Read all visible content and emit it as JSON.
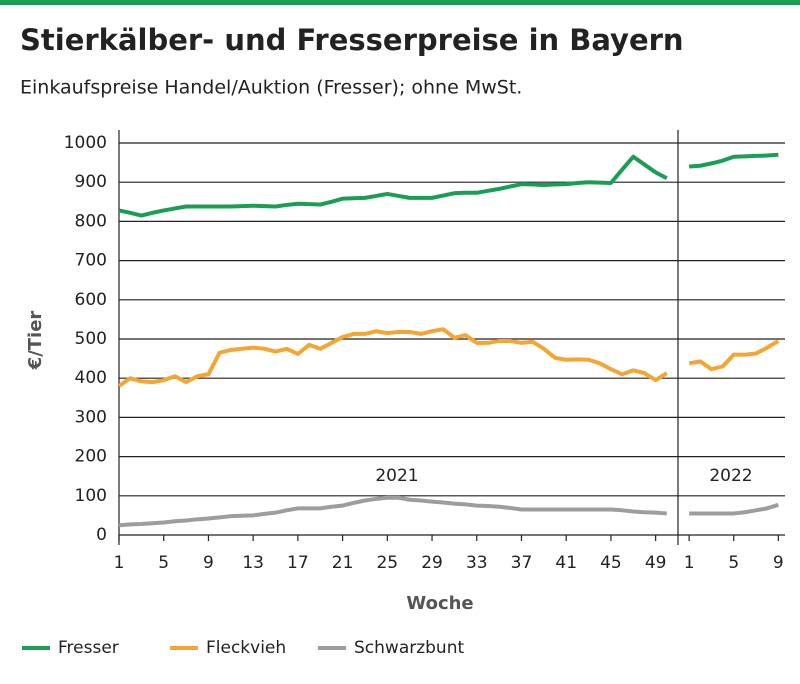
{
  "chart_data": [
    {
      "type": "line",
      "title": "Stierkälber- und Fresserpreise in Bayern",
      "subtitle": "Einkaufspreise Handel/Auktion (Fresser); ohne MwSt.",
      "ylabel": "€/Tier",
      "xlabel": "Woche",
      "annotation": "2021",
      "x": [
        1,
        2,
        3,
        4,
        5,
        6,
        7,
        8,
        9,
        10,
        11,
        12,
        13,
        14,
        15,
        16,
        17,
        18,
        19,
        20,
        21,
        22,
        23,
        24,
        25,
        26,
        27,
        28,
        29,
        30,
        31,
        32,
        33,
        34,
        35,
        36,
        37,
        38,
        39,
        40,
        41,
        42,
        43,
        44,
        45,
        46,
        47,
        48,
        49,
        50
      ],
      "xlim": [
        1,
        51
      ],
      "xticks": [
        1,
        5,
        9,
        13,
        17,
        21,
        25,
        29,
        33,
        37,
        41,
        45,
        49
      ],
      "ylim": [
        0,
        1000
      ],
      "yticks": [
        0,
        100,
        200,
        300,
        400,
        500,
        600,
        700,
        800,
        900,
        1000
      ],
      "grid": true,
      "legend": "bottom",
      "series": [
        {
          "name": "Fresser",
          "color": "#1a9e56",
          "values": [
            828,
            822,
            815,
            822,
            828,
            833,
            838,
            838,
            838,
            838,
            838,
            839,
            840,
            839,
            838,
            842,
            845,
            844,
            843,
            850,
            858,
            859,
            860,
            865,
            870,
            865,
            860,
            860,
            860,
            866,
            872,
            873,
            873,
            878,
            883,
            889,
            895,
            894,
            893,
            894,
            895,
            898,
            900,
            899,
            898,
            932,
            965,
            945,
            925,
            910
          ]
        },
        {
          "name": "Fleckvieh",
          "color": "#f4a533",
          "values": [
            380,
            400,
            392,
            390,
            395,
            405,
            390,
            405,
            410,
            465,
            472,
            475,
            478,
            475,
            468,
            475,
            462,
            485,
            475,
            490,
            505,
            513,
            513,
            520,
            515,
            518,
            518,
            513,
            520,
            525,
            503,
            510,
            490,
            490,
            495,
            495,
            490,
            493,
            475,
            452,
            447,
            448,
            447,
            438,
            423,
            410,
            420,
            413,
            395,
            413
          ]
        },
        {
          "name": "Schwarzbunt",
          "color": "#9d9d9d",
          "values": [
            25,
            27,
            28,
            30,
            32,
            35,
            37,
            40,
            42,
            45,
            48,
            49,
            50,
            54,
            57,
            63,
            68,
            68,
            68,
            72,
            75,
            82,
            88,
            92,
            95,
            95,
            90,
            88,
            85,
            83,
            80,
            78,
            75,
            74,
            72,
            69,
            65,
            65,
            65,
            65,
            65,
            65,
            65,
            65,
            65,
            63,
            60,
            58,
            57,
            55
          ]
        }
      ]
    },
    {
      "type": "line",
      "annotation": "2022",
      "x": [
        1,
        2,
        3,
        4,
        5,
        6,
        7,
        8,
        9
      ],
      "xlim": [
        0,
        9.6
      ],
      "xticks": [
        1,
        5,
        9
      ],
      "ylim": [
        0,
        1000
      ],
      "yticks": [
        0,
        100,
        200,
        300,
        400,
        500,
        600,
        700,
        800,
        900,
        1000
      ],
      "grid": true,
      "series": [
        {
          "color": "#1a9e56",
          "values": [
            940,
            942,
            948,
            955,
            965,
            966,
            967,
            968,
            970
          ]
        },
        {
          "color": "#f4a533",
          "values": [
            438,
            443,
            423,
            430,
            460,
            460,
            463,
            478,
            495
          ]
        },
        {
          "color": "#9d9d9d",
          "values": [
            55,
            55,
            55,
            55,
            55,
            58,
            63,
            68,
            77
          ]
        }
      ]
    }
  ]
}
